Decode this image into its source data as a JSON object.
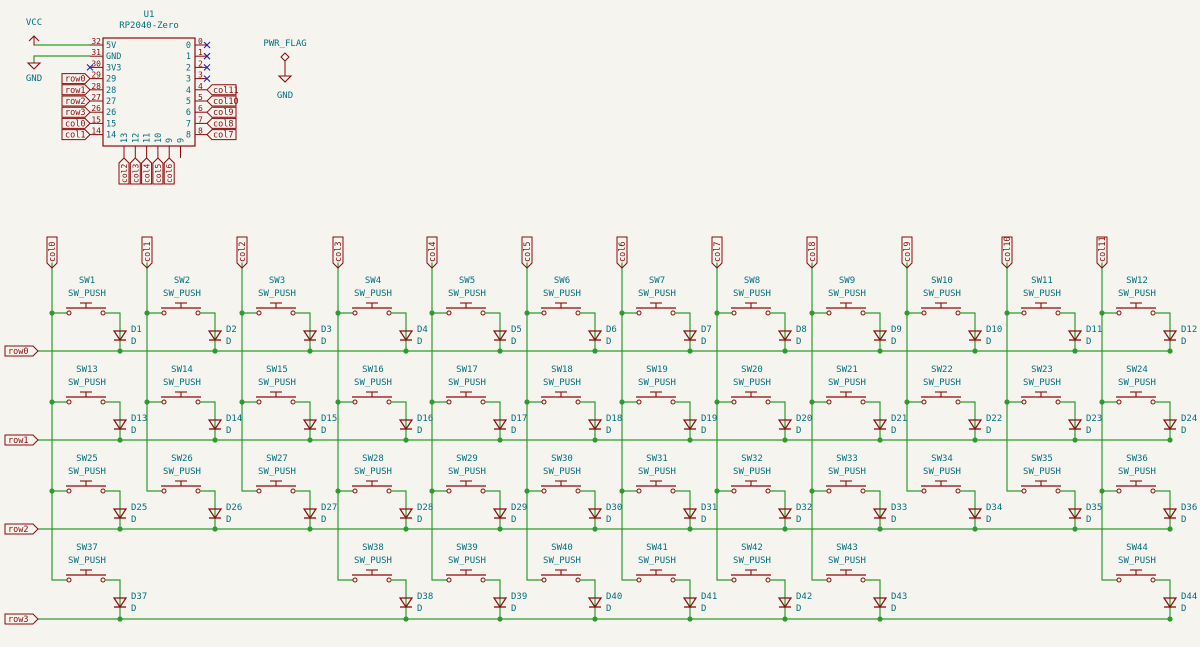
{
  "schematic": {
    "power": {
      "vcc_label": "VCC",
      "gnd_label": "GND",
      "pwr_flag_label": "PWR_FLAG",
      "pwr_flag_gnd_label": "GND"
    },
    "mcu": {
      "ref": "U1",
      "value": "RP2040-Zero",
      "left_pins": [
        {
          "num": "32",
          "name": "5V"
        },
        {
          "num": "31",
          "name": "GND"
        },
        {
          "num": "30",
          "name": "3V3"
        },
        {
          "num": "29",
          "name": "29"
        },
        {
          "num": "28",
          "name": "28"
        },
        {
          "num": "27",
          "name": "27"
        },
        {
          "num": "26",
          "name": "26"
        },
        {
          "num": "15",
          "name": "15"
        },
        {
          "num": "14",
          "name": "14"
        }
      ],
      "right_pins": [
        {
          "num": "0",
          "name": "0"
        },
        {
          "num": "1",
          "name": "1"
        },
        {
          "num": "2",
          "name": "2"
        },
        {
          "num": "3",
          "name": "3"
        },
        {
          "num": "4",
          "name": "4"
        },
        {
          "num": "5",
          "name": "5"
        },
        {
          "num": "6",
          "name": "6"
        },
        {
          "num": "7",
          "name": "7"
        },
        {
          "num": "8",
          "name": "8"
        }
      ],
      "bottom_pins": [
        {
          "num": "13",
          "name": "13"
        },
        {
          "num": "12",
          "name": "12"
        },
        {
          "num": "11",
          "name": "11"
        },
        {
          "num": "10",
          "name": "10"
        },
        {
          "num": "9",
          "name": "9"
        },
        {
          "num": "",
          "name": "9"
        }
      ],
      "left_labels": [
        "row0",
        "row1",
        "row2",
        "row3",
        "col0",
        "col1"
      ],
      "right_labels": [
        "col11",
        "col10",
        "col9",
        "col8",
        "col7"
      ],
      "bottom_labels": [
        "col2",
        "col3",
        "col4",
        "col5",
        "col6"
      ]
    },
    "matrix": {
      "row_labels": [
        "row0",
        "row1",
        "row2",
        "row3"
      ],
      "col_labels": [
        "col0",
        "col1",
        "col2",
        "col3",
        "col4",
        "col5",
        "col6",
        "col7",
        "col8",
        "col9",
        "col10",
        "col11"
      ],
      "switch_value": "SW_PUSH",
      "diode_value": "D",
      "keys": [
        {
          "row": 0,
          "col": 0,
          "sw": "SW1",
          "d": "D1"
        },
        {
          "row": 0,
          "col": 1,
          "sw": "SW2",
          "d": "D2"
        },
        {
          "row": 0,
          "col": 2,
          "sw": "SW3",
          "d": "D3"
        },
        {
          "row": 0,
          "col": 3,
          "sw": "SW4",
          "d": "D4"
        },
        {
          "row": 0,
          "col": 4,
          "sw": "SW5",
          "d": "D5"
        },
        {
          "row": 0,
          "col": 5,
          "sw": "SW6",
          "d": "D6"
        },
        {
          "row": 0,
          "col": 6,
          "sw": "SW7",
          "d": "D7"
        },
        {
          "row": 0,
          "col": 7,
          "sw": "SW8",
          "d": "D8"
        },
        {
          "row": 0,
          "col": 8,
          "sw": "SW9",
          "d": "D9"
        },
        {
          "row": 0,
          "col": 9,
          "sw": "SW10",
          "d": "D10"
        },
        {
          "row": 0,
          "col": 10,
          "sw": "SW11",
          "d": "D11"
        },
        {
          "row": 0,
          "col": 11,
          "sw": "SW12",
          "d": "D12"
        },
        {
          "row": 1,
          "col": 0,
          "sw": "SW13",
          "d": "D13"
        },
        {
          "row": 1,
          "col": 1,
          "sw": "SW14",
          "d": "D14"
        },
        {
          "row": 1,
          "col": 2,
          "sw": "SW15",
          "d": "D15"
        },
        {
          "row": 1,
          "col": 3,
          "sw": "SW16",
          "d": "D16"
        },
        {
          "row": 1,
          "col": 4,
          "sw": "SW17",
          "d": "D17"
        },
        {
          "row": 1,
          "col": 5,
          "sw": "SW18",
          "d": "D18"
        },
        {
          "row": 1,
          "col": 6,
          "sw": "SW19",
          "d": "D19"
        },
        {
          "row": 1,
          "col": 7,
          "sw": "SW20",
          "d": "D20"
        },
        {
          "row": 1,
          "col": 8,
          "sw": "SW21",
          "d": "D21"
        },
        {
          "row": 1,
          "col": 9,
          "sw": "SW22",
          "d": "D22"
        },
        {
          "row": 1,
          "col": 10,
          "sw": "SW23",
          "d": "D23"
        },
        {
          "row": 1,
          "col": 11,
          "sw": "SW24",
          "d": "D24"
        },
        {
          "row": 2,
          "col": 0,
          "sw": "SW25",
          "d": "D25"
        },
        {
          "row": 2,
          "col": 1,
          "sw": "SW26",
          "d": "D26"
        },
        {
          "row": 2,
          "col": 2,
          "sw": "SW27",
          "d": "D27"
        },
        {
          "row": 2,
          "col": 3,
          "sw": "SW28",
          "d": "D28"
        },
        {
          "row": 2,
          "col": 4,
          "sw": "SW29",
          "d": "D29"
        },
        {
          "row": 2,
          "col": 5,
          "sw": "SW30",
          "d": "D30"
        },
        {
          "row": 2,
          "col": 6,
          "sw": "SW31",
          "d": "D31"
        },
        {
          "row": 2,
          "col": 7,
          "sw": "SW32",
          "d": "D32"
        },
        {
          "row": 2,
          "col": 8,
          "sw": "SW33",
          "d": "D33"
        },
        {
          "row": 2,
          "col": 9,
          "sw": "SW34",
          "d": "D34"
        },
        {
          "row": 2,
          "col": 10,
          "sw": "SW35",
          "d": "D35"
        },
        {
          "row": 2,
          "col": 11,
          "sw": "SW36",
          "d": "D36"
        },
        {
          "row": 3,
          "col": 0,
          "sw": "SW37",
          "d": "D37"
        },
        {
          "row": 3,
          "col": 3,
          "sw": "SW38",
          "d": "D38"
        },
        {
          "row": 3,
          "col": 4,
          "sw": "SW39",
          "d": "D39"
        },
        {
          "row": 3,
          "col": 5,
          "sw": "SW40",
          "d": "D40"
        },
        {
          "row": 3,
          "col": 6,
          "sw": "SW41",
          "d": "D41"
        },
        {
          "row": 3,
          "col": 7,
          "sw": "SW42",
          "d": "D42"
        },
        {
          "row": 3,
          "col": 8,
          "sw": "SW43",
          "d": "D43"
        },
        {
          "row": 3,
          "col": 11,
          "sw": "SW44",
          "d": "D44"
        }
      ]
    }
  },
  "colors": {
    "background": "#f5f4ef",
    "wire": "#2f9b2f",
    "symbol": "#8c0a0a",
    "label_text": "#00707e",
    "no_connect": "#2222aa"
  }
}
